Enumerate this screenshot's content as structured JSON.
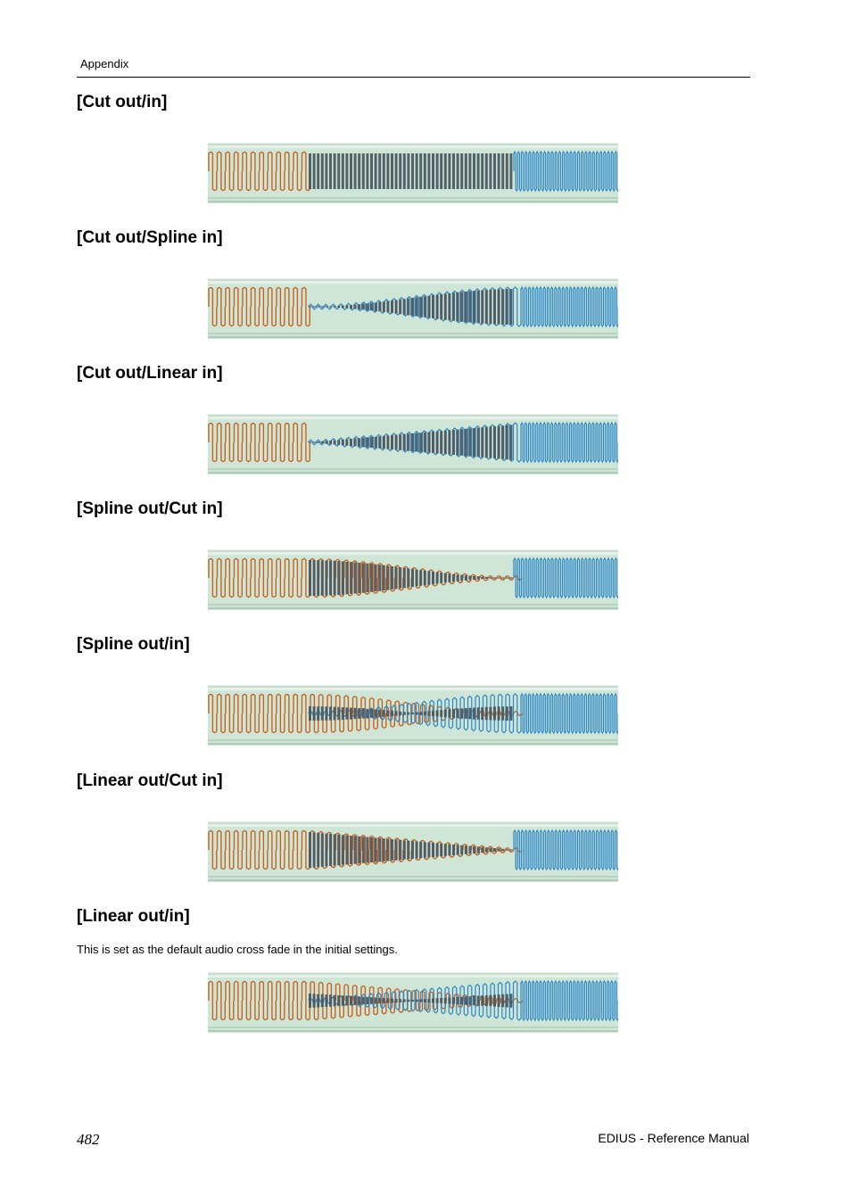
{
  "header": {
    "section": "Appendix"
  },
  "sections": [
    {
      "title": "[Cut out/in]",
      "out_curve": "cut",
      "in_curve": "cut"
    },
    {
      "title": "[Cut out/Spline in]",
      "out_curve": "cut",
      "in_curve": "spline"
    },
    {
      "title": "[Cut out/Linear in]",
      "out_curve": "cut",
      "in_curve": "linear"
    },
    {
      "title": "[Spline out/Cut in]",
      "out_curve": "spline",
      "in_curve": "cut"
    },
    {
      "title": "[Spline out/in]",
      "out_curve": "spline",
      "in_curve": "spline"
    },
    {
      "title": "[Linear out/Cut in]",
      "out_curve": "linear",
      "in_curve": "cut"
    },
    {
      "title": "[Linear out/in]",
      "out_curve": "linear",
      "in_curve": "linear",
      "note": "This is set as the default audio cross fade in the initial settings."
    }
  ],
  "footer": {
    "page_number": "482",
    "manual_title": "EDIUS - Reference Manual"
  },
  "colors": {
    "out_clip": "#c8621e",
    "in_clip": "#2a86c8",
    "crossfade": "#4a5660",
    "background": "#cfe6d6"
  }
}
